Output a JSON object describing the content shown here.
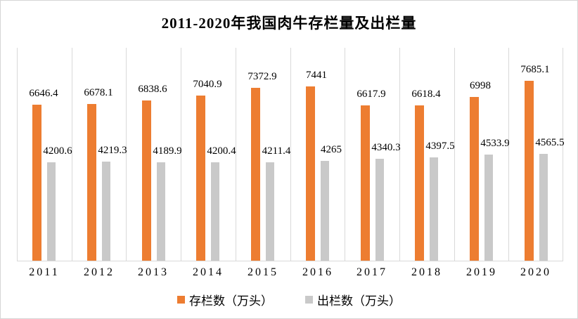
{
  "chart_data": {
    "type": "bar",
    "title": "2011-2020年我国肉牛存栏量及出栏量",
    "categories": [
      "2011",
      "2012",
      "2013",
      "2014",
      "2015",
      "2016",
      "2017",
      "2018",
      "2019",
      "2020"
    ],
    "series": [
      {
        "name": "存栏数（万头）",
        "color": "#ED7D31",
        "values": [
          6646.4,
          6678.1,
          6838.6,
          7040.9,
          7372.9,
          7441,
          6617.9,
          6618.4,
          6998,
          7685.1
        ]
      },
      {
        "name": "出栏数（万头）",
        "color": "#C9C9C9",
        "values": [
          4200.6,
          4219.3,
          4189.9,
          4200.4,
          4211.4,
          4265,
          4340.3,
          4397.5,
          4533.9,
          4565.5
        ]
      }
    ],
    "ylim": [
      0,
      9090
    ],
    "xlabel": "",
    "ylabel": "",
    "grid": "vertical-only",
    "gridline_color": "#D9D9D9",
    "data_labels": true,
    "legend_position": "bottom"
  }
}
